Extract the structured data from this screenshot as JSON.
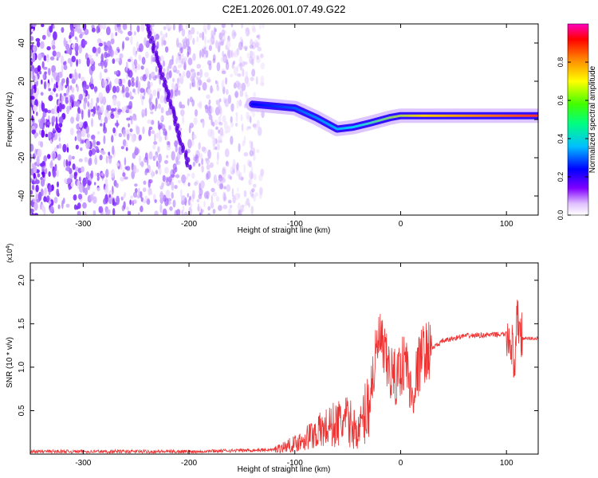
{
  "figure_title": "C2E1.2026.001.07.49.G22",
  "colors": {
    "snr_line": "#ee3333",
    "background": "#ffffff",
    "axis": "#000000"
  },
  "chart_data": [
    {
      "type": "heatmap",
      "title": "C2E1.2026.001.07.49.G22",
      "xlabel": "Height of straight line (km)",
      "ylabel": "Frequency (Hz)",
      "xlim": [
        -350,
        130
      ],
      "ylim": [
        -50,
        50
      ],
      "x_ticks": [
        -300,
        -200,
        -100,
        0,
        100
      ],
      "y_ticks": [
        -40,
        -20,
        0,
        20,
        40
      ],
      "colorbar": {
        "label": "Normalized spectral amplitude",
        "range": [
          0,
          1
        ],
        "ticks": [
          0.0,
          0.2,
          0.4,
          0.6,
          0.8
        ],
        "tick_labels": [
          "0.0",
          "0.2",
          "0.4",
          "0.6",
          "0.8"
        ],
        "colormap": "rainbow (white-violet-blue-cyan-green-yellow-red-magenta)"
      },
      "features": {
        "noise_region_x": [
          -350,
          -130
        ],
        "diagonal_streak": {
          "start": [
            -240,
            50
          ],
          "end": [
            -200,
            -25
          ]
        },
        "main_trace": [
          {
            "x": -140,
            "y": 8
          },
          {
            "x": -100,
            "y": 6
          },
          {
            "x": -80,
            "y": 1
          },
          {
            "x": -60,
            "y": -5
          },
          {
            "x": -45,
            "y": -4
          },
          {
            "x": -30,
            "y": -2
          },
          {
            "x": -10,
            "y": 1
          },
          {
            "x": 0,
            "y": 2
          },
          {
            "x": 20,
            "y": 2
          },
          {
            "x": 60,
            "y": 2
          },
          {
            "x": 100,
            "y": 2
          },
          {
            "x": 130,
            "y": 2
          }
        ]
      }
    },
    {
      "type": "line",
      "title": "",
      "xlabel": "Height of straight line (km)",
      "ylabel": "SNR (10 * v/v)",
      "y_multiplier_label": "(x10",
      "y_multiplier_exp": "4",
      "y_multiplier_close": ")",
      "xlim": [
        -350,
        130
      ],
      "ylim": [
        0,
        2.2
      ],
      "x_ticks": [
        -300,
        -200,
        -100,
        0,
        100
      ],
      "y_ticks": [
        0.5,
        1.0,
        1.5,
        2.0
      ],
      "y_tick_labels": [
        "0.5",
        "1.0",
        "1.5",
        "2.0"
      ],
      "series": [
        {
          "name": "SNR",
          "x": [
            -350,
            -200,
            -120,
            -100,
            -80,
            -60,
            -50,
            -40,
            -30,
            -25,
            -20,
            -15,
            -10,
            -5,
            0,
            5,
            10,
            20,
            30,
            40,
            60,
            80,
            100,
            105,
            108,
            110,
            115,
            130
          ],
          "values": [
            0.03,
            0.03,
            0.05,
            0.12,
            0.25,
            0.35,
            0.38,
            0.25,
            0.6,
            1.0,
            1.35,
            1.1,
            0.95,
            0.85,
            1.0,
            1.1,
            0.65,
            1.15,
            1.22,
            1.3,
            1.36,
            1.37,
            1.38,
            1.3,
            0.8,
            1.6,
            1.33,
            1.33
          ]
        }
      ]
    }
  ]
}
